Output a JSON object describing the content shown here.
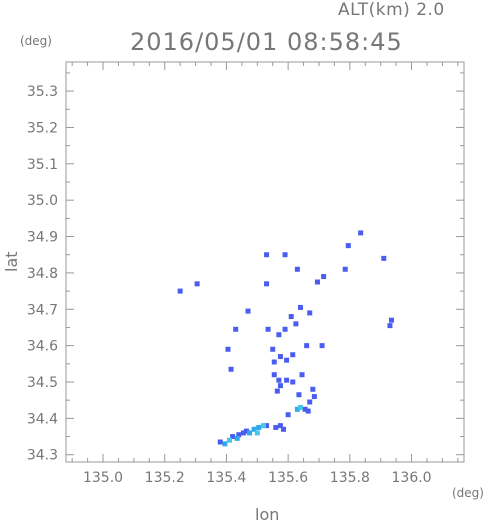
{
  "header": {
    "altitude": "ALT(km)  2.0",
    "timestamp": "2016/05/01 08:58:45"
  },
  "colors": {
    "axis": "#999999",
    "text": "#777777",
    "echo_main": "#4b5df0",
    "echo_light": "#2fa8ee",
    "echo_cyan": "#46c7ea"
  },
  "chart_data": {
    "type": "scatter",
    "title": "2016/05/01 08:58:45",
    "xlabel": "lon",
    "ylabel": "lat",
    "x_unit": "(deg)",
    "y_unit": "(deg)",
    "xlim": [
      134.88,
      136.17
    ],
    "ylim": [
      34.28,
      35.38
    ],
    "xticks": [
      135.0,
      135.2,
      135.4,
      135.6,
      135.8,
      136.0
    ],
    "xtick_labels": [
      "135.0",
      "135.2",
      "135.4",
      "135.6",
      "135.8",
      "136.0"
    ],
    "yticks": [
      34.3,
      34.4,
      34.5,
      34.6,
      34.7,
      34.8,
      34.9,
      35.0,
      35.1,
      35.2,
      35.3
    ],
    "ytick_labels": [
      "34.3",
      "34.4",
      "34.5",
      "34.6",
      "34.7",
      "34.8",
      "34.9",
      "35.0",
      "35.1",
      "35.2",
      "35.3"
    ],
    "series": [
      {
        "color": "#4b5df0",
        "points": [
          [
            135.25,
            34.75
          ],
          [
            135.305,
            34.77
          ],
          [
            135.53,
            34.85
          ],
          [
            135.59,
            34.85
          ],
          [
            135.63,
            34.81
          ],
          [
            135.715,
            34.79
          ],
          [
            135.785,
            34.81
          ],
          [
            135.795,
            34.875
          ],
          [
            135.835,
            34.91
          ],
          [
            135.91,
            34.84
          ],
          [
            135.935,
            34.67
          ],
          [
            135.93,
            34.655
          ],
          [
            135.53,
            34.77
          ],
          [
            135.695,
            34.775
          ],
          [
            135.47,
            34.695
          ],
          [
            135.43,
            34.645
          ],
          [
            135.405,
            34.59
          ],
          [
            135.415,
            34.535
          ],
          [
            135.535,
            34.645
          ],
          [
            135.55,
            34.59
          ],
          [
            135.555,
            34.555
          ],
          [
            135.57,
            34.63
          ],
          [
            135.575,
            34.57
          ],
          [
            135.59,
            34.645
          ],
          [
            135.61,
            34.68
          ],
          [
            135.615,
            34.575
          ],
          [
            135.625,
            34.66
          ],
          [
            135.64,
            34.705
          ],
          [
            135.67,
            34.69
          ],
          [
            135.595,
            34.56
          ],
          [
            135.555,
            34.52
          ],
          [
            135.57,
            34.505
          ],
          [
            135.575,
            34.49
          ],
          [
            135.565,
            34.475
          ],
          [
            135.595,
            34.505
          ],
          [
            135.615,
            34.5
          ],
          [
            135.635,
            34.465
          ],
          [
            135.645,
            34.52
          ],
          [
            135.68,
            34.48
          ],
          [
            135.685,
            34.46
          ],
          [
            135.67,
            34.445
          ],
          [
            135.6,
            34.41
          ],
          [
            135.655,
            34.425
          ],
          [
            135.665,
            34.42
          ],
          [
            135.53,
            34.38
          ],
          [
            135.56,
            34.375
          ],
          [
            135.575,
            34.38
          ],
          [
            135.585,
            34.37
          ],
          [
            135.42,
            34.35
          ],
          [
            135.44,
            34.355
          ],
          [
            135.455,
            34.36
          ],
          [
            135.465,
            34.365
          ],
          [
            135.38,
            34.335
          ],
          [
            135.71,
            34.6
          ],
          [
            135.66,
            34.6
          ]
        ]
      },
      {
        "color": "#2fa8ee",
        "points": [
          [
            135.49,
            34.37
          ],
          [
            135.505,
            34.375
          ],
          [
            135.475,
            34.36
          ],
          [
            135.63,
            34.425
          ],
          [
            135.435,
            34.345
          ],
          [
            135.395,
            34.33
          ]
        ]
      },
      {
        "color": "#46c7ea",
        "points": [
          [
            135.52,
            34.38
          ],
          [
            135.5,
            34.36
          ],
          [
            135.41,
            34.34
          ],
          [
            135.64,
            34.43
          ]
        ]
      }
    ]
  }
}
